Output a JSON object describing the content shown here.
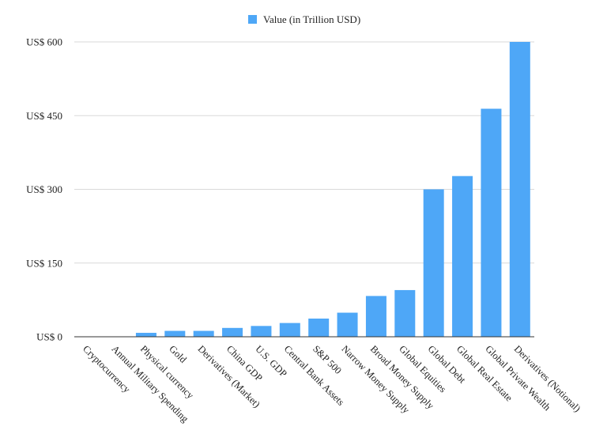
{
  "chart_data": {
    "type": "bar",
    "legend": "Value (in Trillion USD)",
    "legend_position": "top-center",
    "color": "#4ea7f7",
    "categories": [
      "Cryptocurrency",
      "Annual Military Spending",
      "Physical currency",
      "Gold",
      "Derivatives (Market)",
      "China GDP",
      "U.S. GDP",
      "Central Bank Assets",
      "S&P 500",
      "Narrow Money Supply",
      "Broad Money Supply",
      "Global Equities",
      "Global Debt",
      "Global Real Estate",
      "Global Private Wealth",
      "Derivatives (Notional)"
    ],
    "values": [
      0.2,
      0.5,
      8,
      12,
      12,
      18,
      22,
      28,
      37,
      49,
      83,
      95,
      300,
      327,
      464,
      600
    ],
    "ylim": [
      0,
      600
    ],
    "yticks": [
      0,
      150,
      300,
      450,
      600
    ],
    "ytick_labels": [
      "US$ 0",
      "US$ 150",
      "US$ 300",
      "US$ 450",
      "US$ 600"
    ],
    "grid": true,
    "title": "",
    "xlabel": "",
    "ylabel": ""
  }
}
